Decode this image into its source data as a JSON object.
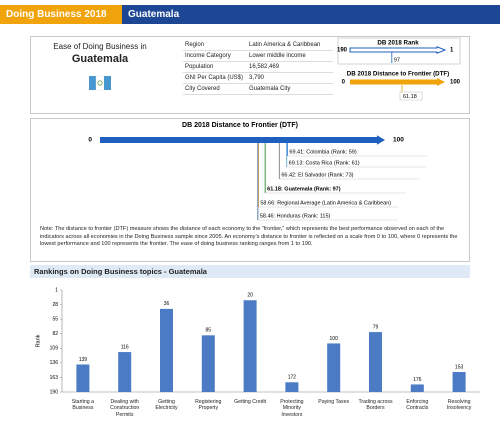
{
  "header": {
    "report": "Doing Business 2018",
    "economy": "Guatemala"
  },
  "profile": {
    "heading": "Ease of Doing Business in",
    "economy": "Guatemala",
    "rows": [
      [
        "Region",
        "Latin America & Caribbean"
      ],
      [
        "Income Category",
        "Lower middle income"
      ],
      [
        "Population",
        "16,582,469"
      ],
      [
        "GNI Per Capita (US$)",
        "3,790"
      ],
      [
        "City Covered",
        "Guatemala City"
      ]
    ]
  },
  "rank_gauge": {
    "title": "DB 2018 Rank",
    "start": 190,
    "end": 1,
    "value": 97,
    "color": "#1f5fbf"
  },
  "dtf_gauge": {
    "title": "DB 2018 Distance to Frontier (DTF)",
    "start": 0,
    "end": 100,
    "value": 61.18,
    "color": "#f0a30a"
  },
  "dtf_comparison": {
    "title": "DB 2018 Distance to Frontier (DTF)",
    "start": 0,
    "end": 100,
    "color": "#1f5fbf",
    "items": [
      {
        "value": 69.41,
        "label": "69.41: Colombia (Rank: 59)",
        "color": "#3b7dd8"
      },
      {
        "value": 69.13,
        "label": "69.13: Costa Rica (Rank: 61)",
        "color": "#6fb0e0"
      },
      {
        "value": 66.42,
        "label": "66.42: El Salvador (Rank: 73)",
        "color": "#8a8a8a"
      },
      {
        "value": 61.18,
        "label": "61.18: Guatemala (Rank: 97)",
        "color": "#3a9a3a"
      },
      {
        "value": 58.66,
        "label": "58.66: Regional Average (Latin America & Caribbean)",
        "color": "#f0a30a"
      },
      {
        "value": 58.46,
        "label": "58.46: Honduras (Rank: 115)",
        "color": "#5a78a8"
      }
    ]
  },
  "note": "Note: The distance to frontier (DTF) measure shows the distance of each economy to the “frontier,” which represents the best performance observed on each of the indicators across all economies in the Doing Business sample since 2005. An economy’s distance to frontier is reflected on a scale from 0 to 100, where 0 represents the lowest performance and 100 represents the frontier. The ease of doing business ranking ranges from 1 to 190.",
  "chart_data": {
    "type": "bar",
    "title": "Rankings on Doing Business topics - Guatemala",
    "y_label": "Rank",
    "categories": [
      "Starting a Business",
      "Dealing with Construction Permits",
      "Getting Electricity",
      "Registering Property",
      "Getting Credit",
      "Protecting Minority Investors",
      "Paying Taxes",
      "Trading across Borders",
      "Enforcing Contracts",
      "Resolving Insolvency"
    ],
    "values": [
      139,
      116,
      36,
      85,
      20,
      172,
      100,
      79,
      176,
      153
    ],
    "color": "#4a7bc4",
    "ylim": [
      190,
      1
    ],
    "yticks": [
      1,
      28,
      55,
      82,
      109,
      136,
      163,
      190
    ],
    "grid": false
  }
}
